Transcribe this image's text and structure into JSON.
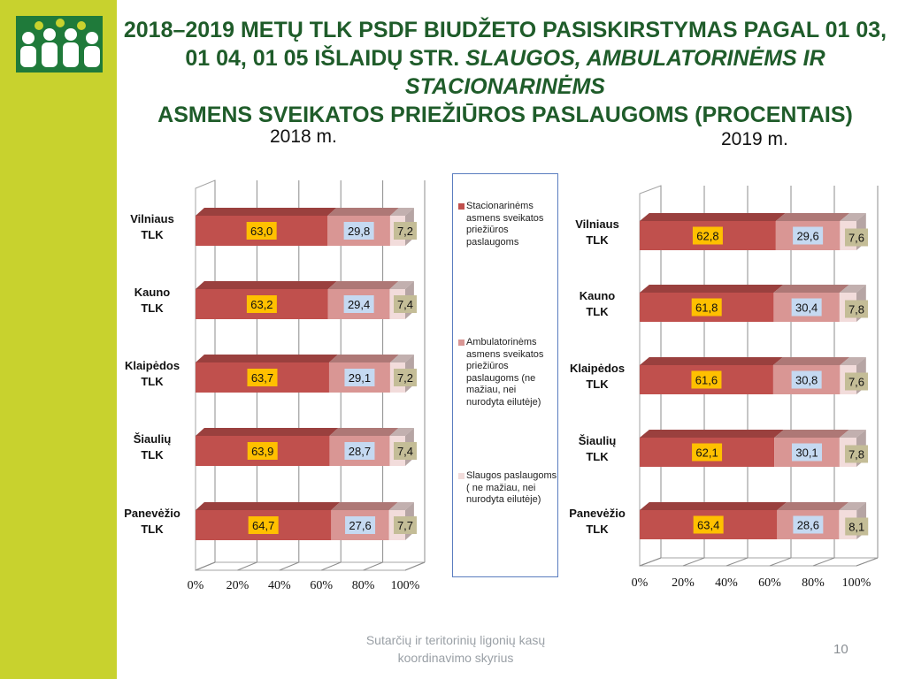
{
  "slide": {
    "title_plain": "2018–2019 METŲ TLK PSDF BIUDŽETO PASISKIRSTYMAS  PAGAL 01 03, 01 04, 01 05 IŠLAIDŲ STR. ",
    "title_italic": "SLAUGOS, AMBULATORINĖMS IR STACIONARINĖMS",
    "title_end": "ASMENS SVEIKATOS PRIEŽIŪROS PASLAUGOMS (PROCENTAIS)",
    "footer": "Sutarčių ir teritorinių ligonių kasų koordinavimo skyrius",
    "page_number": "10"
  },
  "colors": {
    "sidebar": "#c8d22e",
    "title": "#1f5c2a",
    "stacionar": "#c0504d",
    "ambulator": "#d99694",
    "slaugos": "#f2dcdb",
    "label_stacionar_bg": "#ffc000",
    "label_ambulator_bg": "#c5d9f1",
    "label_slaugos_bg": "#c4bd97"
  },
  "legend": [
    {
      "name": "Stacionarinėms\nasmens sveikatos\npriežiūros\npaslaugoms",
      "color": "#c0504d"
    },
    {
      "name": "Ambulatorinėms\nasmens sveikatos\npriežiūros\npaslaugoms (ne\nmažiau, nei\nnurodyta eilutėje)",
      "color": "#d99694"
    },
    {
      "name": "Slaugos paslaugoms\n( ne mažiau, nei\nnurodyta eilutėje)",
      "color": "#f2dcdb"
    }
  ],
  "chart_data": [
    {
      "type": "bar",
      "stacked": "percent",
      "orientation": "horizontal",
      "title": "2018 m.",
      "categories": [
        "Vilniaus TLK",
        "Kauno TLK",
        "Klaipėdos TLK",
        "Šiaulių TLK",
        "Panevėžio TLK"
      ],
      "category_lines": [
        [
          "Vilniaus",
          "TLK"
        ],
        [
          "Kauno",
          "TLK"
        ],
        [
          "Klaipėdos",
          "TLK"
        ],
        [
          "Šiaulių",
          "TLK"
        ],
        [
          "Panevėžio",
          "TLK"
        ]
      ],
      "series": [
        {
          "legend_index": 0,
          "values": [
            63.0,
            63.2,
            63.7,
            63.9,
            64.7
          ],
          "labels": [
            "63,0",
            "63,2",
            "63,7",
            "63,9",
            "64,7"
          ]
        },
        {
          "legend_index": 1,
          "values": [
            29.8,
            29.4,
            29.1,
            28.7,
            27.6
          ],
          "labels": [
            "29,8",
            "29,4",
            "29,1",
            "28,7",
            "27,6"
          ]
        },
        {
          "legend_index": 2,
          "values": [
            7.2,
            7.4,
            7.2,
            7.4,
            7.7
          ],
          "labels": [
            "7,2",
            "7,4",
            "7,2",
            "7,4",
            "7,7"
          ]
        }
      ],
      "xticks": [
        "0%",
        "20%",
        "40%",
        "60%",
        "80%",
        "100%"
      ],
      "xlim": [
        0,
        100
      ],
      "grid": true
    },
    {
      "type": "bar",
      "stacked": "percent",
      "orientation": "horizontal",
      "title": "2019 m.",
      "categories": [
        "Vilniaus TLK",
        "Kauno TLK",
        "Klaipėdos TLK",
        "Šiaulių TLK",
        "Panevėžio TLK"
      ],
      "category_lines": [
        [
          "Vilniaus",
          "TLK"
        ],
        [
          "Kauno",
          "TLK"
        ],
        [
          "Klaipėdos",
          "TLK"
        ],
        [
          "Šiaulių",
          "TLK"
        ],
        [
          "Panevėžio",
          "TLK"
        ]
      ],
      "series": [
        {
          "legend_index": 0,
          "values": [
            62.8,
            61.8,
            61.6,
            62.1,
            63.4
          ],
          "labels": [
            "62,8",
            "61,8",
            "61,6",
            "62,1",
            "63,4"
          ]
        },
        {
          "legend_index": 1,
          "values": [
            29.6,
            30.4,
            30.8,
            30.1,
            28.6
          ],
          "labels": [
            "29,6",
            "30,4",
            "30,8",
            "30,1",
            "28,6"
          ]
        },
        {
          "legend_index": 2,
          "values": [
            7.6,
            7.8,
            7.6,
            7.8,
            8.1
          ],
          "labels": [
            "7,6",
            "7,8",
            "7,6",
            "7,8",
            "8,1"
          ]
        }
      ],
      "xticks": [
        "0%",
        "20%",
        "40%",
        "60%",
        "80%",
        "100%"
      ],
      "xlim": [
        0,
        100
      ],
      "grid": true
    }
  ]
}
